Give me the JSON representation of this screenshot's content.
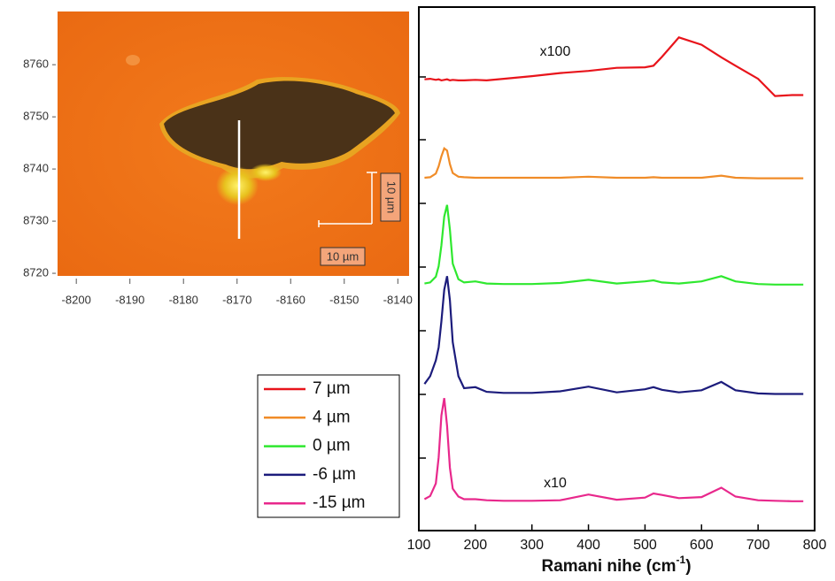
{
  "chart_data": [
    {
      "type": "image",
      "xlim": [
        -8203.5,
        -8137.9
      ],
      "ylim": [
        8719.5,
        8770.2
      ],
      "xticks": [
        -8200,
        -8190,
        -8180,
        -8170,
        -8160,
        -8150,
        -8140
      ],
      "yticks": [
        8720,
        8730,
        8740,
        8750,
        8760
      ],
      "annotations": [
        "10 µm",
        "10 µm"
      ]
    },
    {
      "type": "line",
      "xlabel": [
        "Ramani nihe (cm",
        "-1",
        ")"
      ],
      "xlim": [
        100,
        800
      ],
      "xticks": [
        100,
        200,
        300,
        400,
        500,
        600,
        700,
        800
      ],
      "ylim": [
        0,
        100
      ],
      "annotations": [
        "x100",
        "x10"
      ],
      "x": [
        110,
        120,
        130,
        135,
        140,
        145,
        150,
        155,
        160,
        170,
        180,
        200,
        220,
        250,
        300,
        350,
        400,
        450,
        500,
        515,
        530,
        560,
        600,
        635,
        660,
        700,
        730,
        760,
        780
      ],
      "series": [
        {
          "name": "7 µm",
          "color": "#e8141b",
          "values": [
            86.2,
            86.3,
            86.1,
            86.2,
            86.0,
            86.1,
            86.2,
            86.0,
            86.1,
            86.0,
            86.0,
            86.1,
            86.0,
            86.3,
            86.8,
            87.4,
            87.8,
            88.4,
            88.5,
            88.8,
            90.5,
            94.2,
            92.8,
            90.4,
            88.8,
            86.3,
            83.0,
            83.2,
            83.2
          ]
        },
        {
          "name": "4 µm",
          "color": "#f08c28",
          "values": [
            67.4,
            67.5,
            68.2,
            69.6,
            71.5,
            73.0,
            72.6,
            70.0,
            68.3,
            67.6,
            67.5,
            67.4,
            67.4,
            67.4,
            67.4,
            67.4,
            67.6,
            67.4,
            67.4,
            67.5,
            67.4,
            67.4,
            67.4,
            67.8,
            67.4,
            67.3,
            67.3,
            67.3,
            67.3
          ]
        },
        {
          "name": "0 µm",
          "color": "#2fe82f",
          "values": [
            47.2,
            47.4,
            48.5,
            50.5,
            54.5,
            60.0,
            62.2,
            57.5,
            51.0,
            48.0,
            47.4,
            47.6,
            47.2,
            47.1,
            47.1,
            47.3,
            47.9,
            47.2,
            47.6,
            47.8,
            47.4,
            47.2,
            47.6,
            48.6,
            47.6,
            47.1,
            47.0,
            47.0,
            47.0
          ]
        },
        {
          "name": "-6 µm",
          "color": "#1c1c7c",
          "values": [
            28.0,
            29.5,
            32.5,
            35.0,
            40.0,
            46.0,
            48.6,
            44.0,
            36.0,
            29.5,
            27.2,
            27.4,
            26.5,
            26.3,
            26.3,
            26.6,
            27.5,
            26.4,
            27.0,
            27.4,
            26.9,
            26.4,
            26.8,
            28.4,
            26.8,
            26.2,
            26.1,
            26.1,
            26.1
          ]
        },
        {
          "name": "-15 µm",
          "color": "#e8288c",
          "values": [
            6.0,
            6.6,
            9.0,
            14.0,
            22.0,
            25.3,
            20.0,
            12.0,
            8.0,
            6.5,
            6.0,
            6.0,
            5.8,
            5.7,
            5.7,
            5.8,
            6.9,
            5.9,
            6.3,
            7.1,
            6.8,
            6.2,
            6.4,
            8.2,
            6.5,
            5.8,
            5.7,
            5.6,
            5.6
          ]
        }
      ]
    }
  ]
}
